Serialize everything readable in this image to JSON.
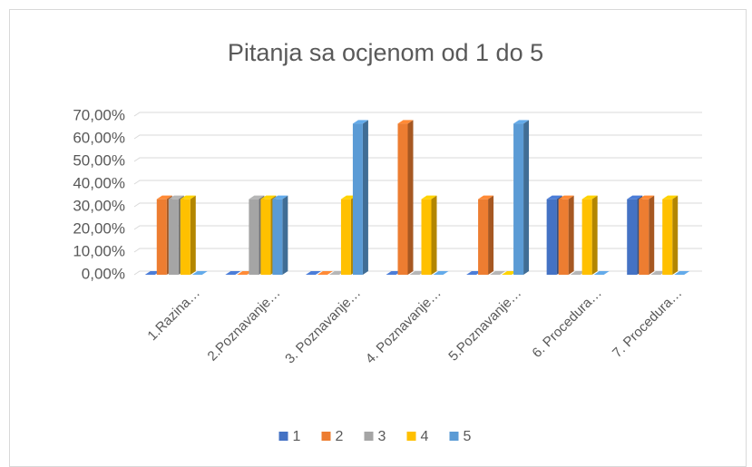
{
  "chart_data": {
    "type": "bar",
    "title": "Pitanja sa ocjenom od 1 do 5",
    "categories": [
      "1.Razina…",
      "2.Poznavanje…",
      "3. Poznavanje…",
      "4. Poznavanje…",
      "5.Poznavanje…",
      "6. Procedura…",
      "7. Procedura…"
    ],
    "series": [
      {
        "name": "1",
        "color": "#4472c4",
        "values": [
          0,
          0,
          0,
          0,
          0,
          33.33,
          33.33
        ]
      },
      {
        "name": "2",
        "color": "#ed7d31",
        "values": [
          33.33,
          0,
          0,
          66.67,
          33.33,
          33.33,
          33.33
        ]
      },
      {
        "name": "3",
        "color": "#a5a5a5",
        "values": [
          33.33,
          33.33,
          0,
          0,
          0,
          0,
          0
        ]
      },
      {
        "name": "4",
        "color": "#ffc000",
        "values": [
          33.33,
          33.33,
          33.33,
          33.33,
          0,
          33.33,
          33.33
        ]
      },
      {
        "name": "5",
        "color": "#5b9bd5",
        "values": [
          0,
          33.33,
          66.67,
          0,
          66.67,
          0,
          0
        ]
      }
    ],
    "ylim": [
      0,
      70
    ],
    "yticks": [
      {
        "value": 0,
        "label": "0,00%"
      },
      {
        "value": 10,
        "label": "10,00%"
      },
      {
        "value": 20,
        "label": "20,00%"
      },
      {
        "value": 30,
        "label": "30,00%"
      },
      {
        "value": 40,
        "label": "40,00%"
      },
      {
        "value": 50,
        "label": "50,00%"
      },
      {
        "value": 60,
        "label": "60,00%"
      },
      {
        "value": 70,
        "label": "70,00%"
      }
    ],
    "grid": true,
    "legend": "bottom"
  }
}
